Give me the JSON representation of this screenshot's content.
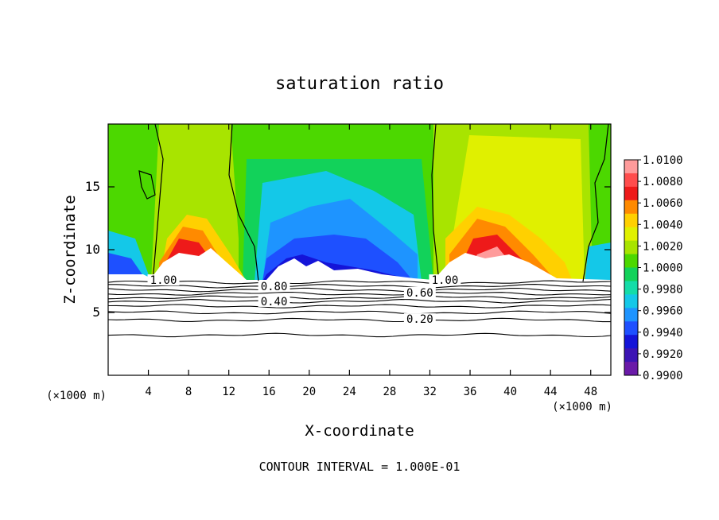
{
  "chart_data": {
    "type": "heatmap",
    "title": "saturation ratio",
    "xlabel": "X-coordinate",
    "ylabel": "Z-coordinate",
    "x_unit": "(×1000 m)",
    "z_unit": "(×1000 m)",
    "xlim": [
      0,
      50
    ],
    "ylim": [
      0,
      20
    ],
    "x_ticks": [
      4,
      8,
      12,
      16,
      20,
      24,
      28,
      32,
      36,
      40,
      44,
      48
    ],
    "y_ticks": [
      5,
      10,
      15
    ],
    "footer": "CONTOUR INTERVAL = 1.000E-01",
    "colorbar": {
      "levels": [
        "1.0100",
        "1.0080",
        "1.0060",
        "1.0040",
        "1.0020",
        "1.0000",
        "0.9980",
        "0.9960",
        "0.9940",
        "0.9920",
        "0.9900"
      ],
      "colors": [
        "#ff9b9b",
        "#ff4d4d",
        "#ee1a1a",
        "#ff8a00",
        "#ffd000",
        "#e0f000",
        "#a8e400",
        "#4cd800",
        "#12d25a",
        "#14dca8",
        "#14c8e8",
        "#1e94ff",
        "#1e50ff",
        "#1414d8",
        "#3c14b4",
        "#6a1aa8"
      ]
    },
    "contour_labels": [
      {
        "text": "1.00",
        "x": 5.5,
        "y": 7.4
      },
      {
        "text": "0.80",
        "x": 16.5,
        "y": 6.9
      },
      {
        "text": "0.40",
        "x": 16.5,
        "y": 5.7
      },
      {
        "text": "1.00",
        "x": 33.5,
        "y": 7.4
      },
      {
        "text": "0.60",
        "x": 31.0,
        "y": 6.4
      },
      {
        "text": "0.20",
        "x": 31.0,
        "y": 4.3
      }
    ],
    "lower_contours": [
      7.4,
      7.1,
      6.8,
      6.5,
      6.2,
      5.9,
      5.5,
      5.0,
      4.4,
      3.2
    ]
  }
}
